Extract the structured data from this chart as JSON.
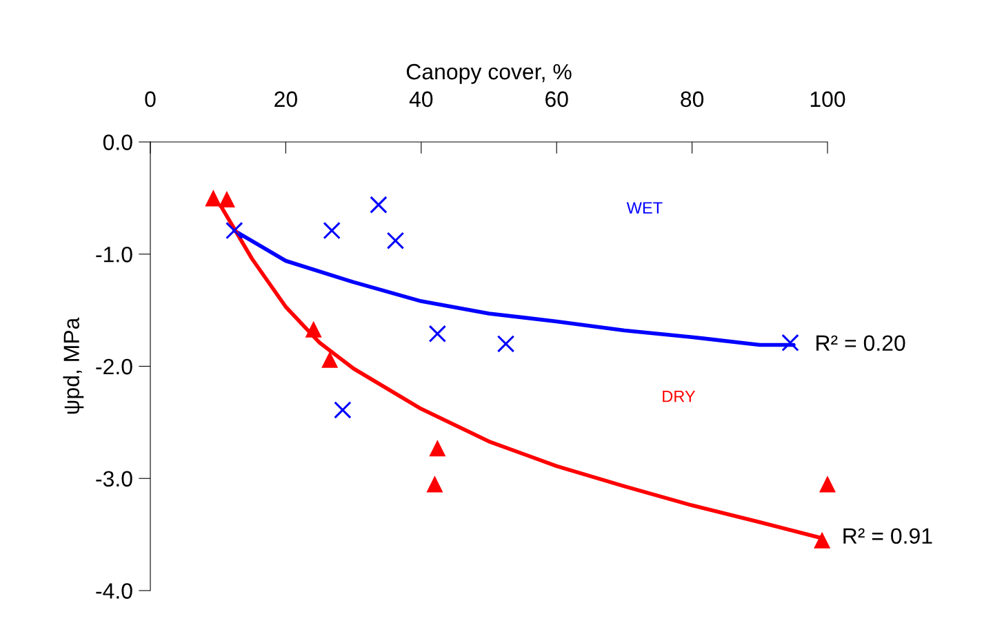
{
  "chart_data": {
    "type": "scatter",
    "xlabel": "Canopy cover, %",
    "ylabel": "ψpd, MPa",
    "xlim": [
      0,
      100
    ],
    "xticks": [
      0,
      20,
      40,
      60,
      80,
      100
    ],
    "ylim": [
      -4.0,
      0.0
    ],
    "yticks": [
      {
        "value": 0,
        "label": "0.0"
      },
      {
        "value": -1,
        "label": "-1.0"
      },
      {
        "value": -2,
        "label": "-2.0"
      },
      {
        "value": -3,
        "label": "-3.0"
      },
      {
        "value": -4,
        "label": "-4.0"
      }
    ],
    "grid": false,
    "legend": false,
    "series": [
      {
        "name": "WET",
        "marker": "cross",
        "color": "#0000ff",
        "x": [
          12.4,
          26.8,
          33.7,
          36.2,
          42.4,
          52.5,
          28.4,
          94.5
        ],
        "values": [
          -0.79,
          -0.79,
          -0.56,
          -0.88,
          -1.71,
          -1.8,
          -2.39,
          -1.79
        ]
      },
      {
        "name": "DRY",
        "marker": "triangle",
        "color": "#ff0000",
        "x": [
          9.3,
          11.3,
          24.1,
          26.5,
          42.4,
          42.0,
          100,
          99.2
        ],
        "values": [
          -0.5,
          -0.51,
          -1.67,
          -1.94,
          -2.73,
          -3.05,
          -3.05,
          -3.55
        ]
      },
      {
        "type": "line",
        "line_style": "solid",
        "color": "#0000ff",
        "x": [
          12.4,
          20,
          30,
          40,
          50,
          60,
          70,
          80,
          90,
          95
        ],
        "values": [
          -0.79,
          -1.06,
          -1.25,
          -1.42,
          -1.53,
          -1.6,
          -1.68,
          -1.74,
          -1.81,
          -1.81
        ]
      },
      {
        "type": "line",
        "line_style": "solid",
        "color": "#ff0000",
        "x": [
          10.5,
          15,
          20,
          25,
          30,
          40,
          50,
          60,
          70,
          80,
          90,
          99
        ],
        "values": [
          -0.58,
          -1.04,
          -1.47,
          -1.79,
          -2.02,
          -2.38,
          -2.67,
          -2.89,
          -3.07,
          -3.24,
          -3.39,
          -3.53
        ]
      }
    ],
    "annotations": [
      {
        "text": "R² = 0.20",
        "x": 95,
        "y": -1.81
      },
      {
        "text": "R² = 0.91",
        "x": 99,
        "y": -3.53
      }
    ]
  }
}
